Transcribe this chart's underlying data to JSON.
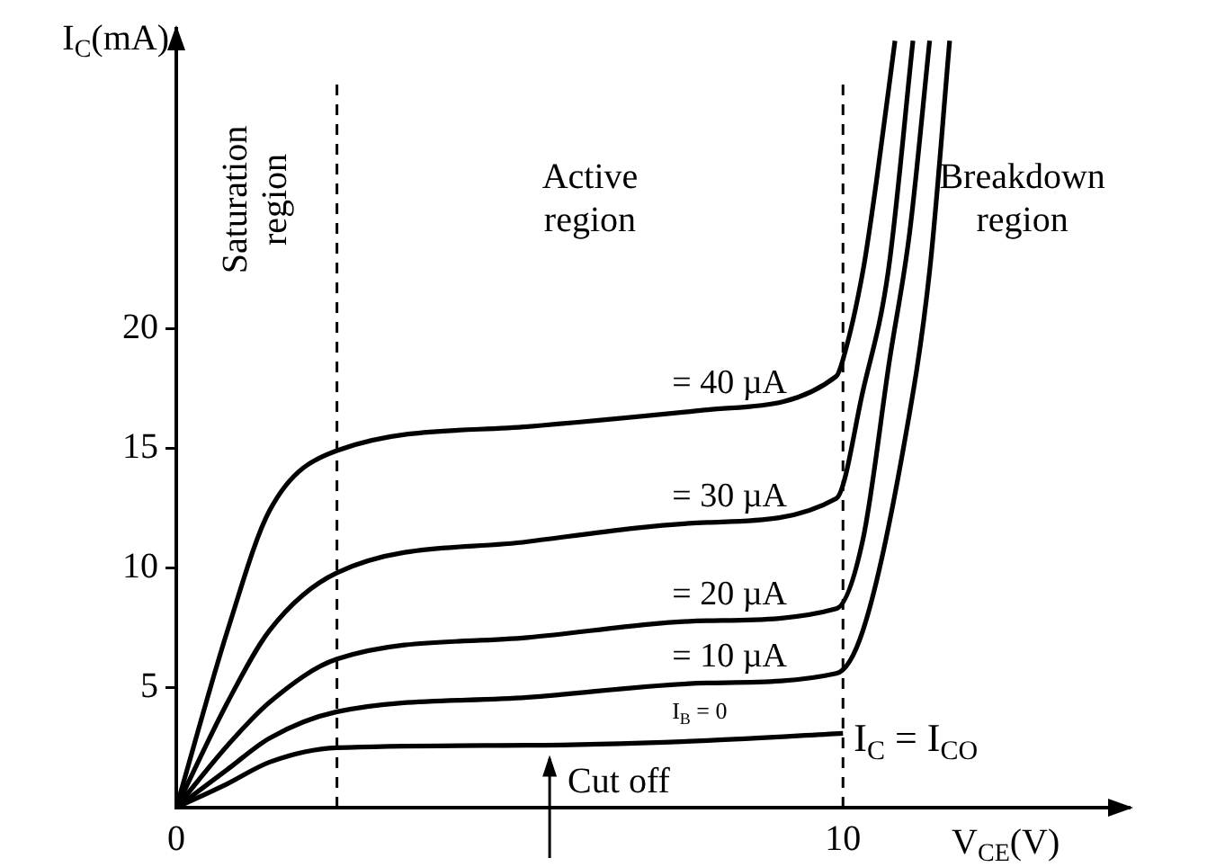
{
  "chart_data": {
    "type": "line",
    "xlabel": "V$_{CE}$(V)",
    "ylabel": "I$_{C}$(mA)",
    "xlim": [
      0,
      14.3
    ],
    "ylim": [
      0,
      32.5
    ],
    "xticks": [
      0,
      10
    ],
    "yticks": [
      5,
      10,
      15,
      20
    ],
    "grid": false,
    "legend": false,
    "marker": "none",
    "line_style": "solid",
    "series": [
      {
        "name": "I$_{B}$ = 0",
        "color": "#000000",
        "x": [
          0,
          0.77,
          1.4,
          2.41,
          5.27,
          7.97,
          10
        ],
        "values": [
          0,
          1.0,
          1.9,
          2.5,
          2.6,
          2.8,
          3.1
        ]
      },
      {
        "name": "= 10 µA",
        "color": "#000000",
        "x": [
          0,
          0.77,
          1.4,
          2.41,
          5.27,
          7.97,
          9.9,
          10.3,
          10.9,
          11.3,
          11.6
        ],
        "values": [
          0,
          1.6,
          2.9,
          4.0,
          4.6,
          5.2,
          5.6,
          7.4,
          14.9,
          22.4,
          32
        ]
      },
      {
        "name": "= 20 µA",
        "color": "#000000",
        "x": [
          0,
          0.77,
          1.4,
          2.41,
          5.27,
          7.97,
          9.9,
          10.3,
          10.7,
          11.0,
          11.3
        ],
        "values": [
          0,
          2.6,
          4.4,
          6.2,
          7.1,
          7.8,
          8.3,
          11.2,
          18.7,
          24,
          32
        ]
      },
      {
        "name": "= 30 µA",
        "color": "#000000",
        "x": [
          0,
          0.77,
          1.4,
          2.41,
          5.27,
          7.97,
          9.9,
          10.3,
          10.68,
          11.05
        ],
        "values": [
          0,
          4.4,
          7.4,
          9.8,
          11.1,
          11.9,
          12.9,
          17.4,
          22.4,
          32
        ]
      },
      {
        "name": "= 40 µA",
        "color": "#000000",
        "x": [
          0,
          0.77,
          1.4,
          2.41,
          5.27,
          7.97,
          9.9,
          10.0,
          10.3,
          10.5,
          10.78
        ],
        "values": [
          0,
          7.4,
          12.4,
          14.9,
          15.9,
          16.6,
          18.0,
          18.7,
          22.4,
          26.1,
          32
        ]
      }
    ],
    "ref_lines": [
      {
        "axis": "x",
        "value": 2.41,
        "line_style": "dashed",
        "color": "#000000"
      },
      {
        "axis": "x",
        "value": 10,
        "line_style": "dashed",
        "color": "#000000"
      }
    ],
    "annotations": [
      "Saturation\nregion",
      "Active\nregion",
      "Breakdown\nregion",
      {
        "text": "Cut off",
        "x": 5.6,
        "y": 2.5
      },
      {
        "text": "I$_{C}$ = I$_{CO}$",
        "x": 10,
        "y": 3.1
      }
    ]
  }
}
